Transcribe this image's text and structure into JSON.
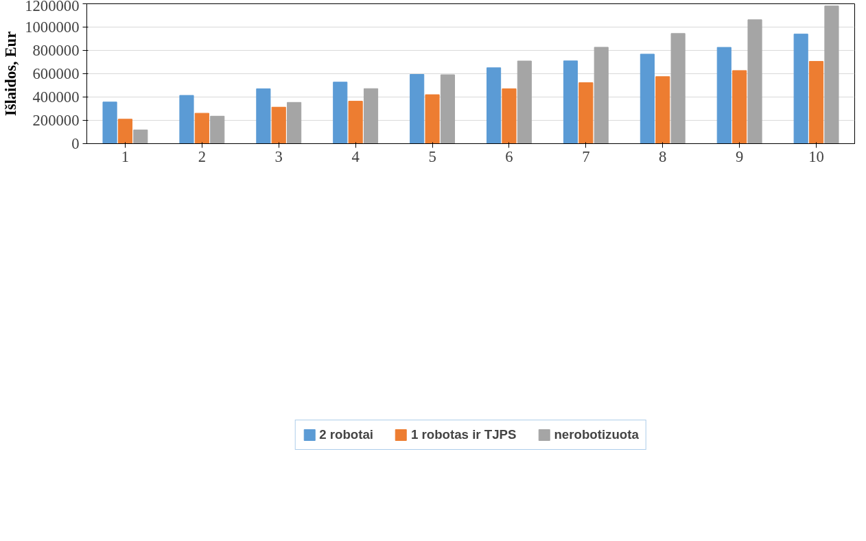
{
  "chart_data": {
    "type": "bar",
    "ylabel": "Išlaidos, Eur",
    "categories": [
      "1",
      "2",
      "3",
      "4",
      "5",
      "6",
      "7",
      "8",
      "9",
      "10"
    ],
    "series": [
      {
        "name": "2 robotai",
        "color": "#5b9bd5",
        "values": [
          357000,
          414000,
          471000,
          528000,
          594000,
          651000,
          710000,
          768000,
          826000,
          940000
        ]
      },
      {
        "name": "1 robotas ir TJPS",
        "color": "#ed7d31",
        "values": [
          210000,
          261000,
          313000,
          364000,
          420000,
          471000,
          523000,
          575000,
          627000,
          706000
        ]
      },
      {
        "name": "nerobotizuota",
        "color": "#a5a5a5",
        "values": [
          118000,
          236000,
          354000,
          472000,
          591000,
          709000,
          827000,
          945000,
          1063000,
          1181000
        ]
      }
    ],
    "ylim": [
      0,
      1200000
    ],
    "yticks": [
      0,
      200000,
      400000,
      600000,
      800000,
      1000000,
      1200000
    ],
    "grid": "y",
    "legend": "bottom"
  }
}
